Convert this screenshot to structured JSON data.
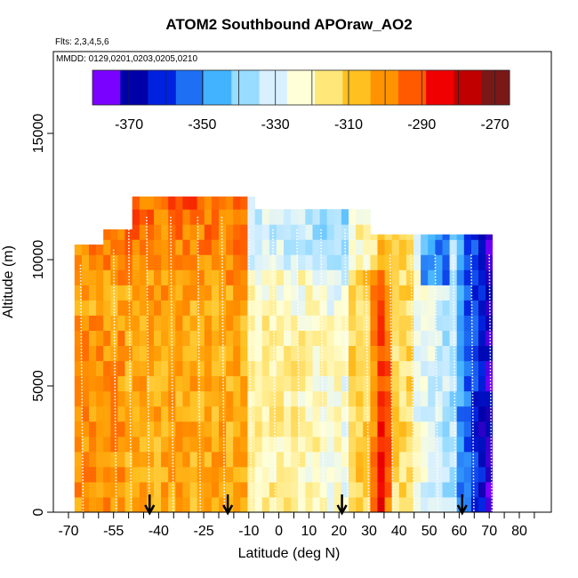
{
  "chart_data": {
    "type": "heatmap",
    "title": "ATOM2 Southbound APOraw_AO2",
    "flights_note": "Flts: 2,3,4,5,6",
    "dates_note": "MMDD: 0129,0201,0203,0205,0210",
    "xlabel": "Latitude (deg N)",
    "ylabel": "Altitude (m)",
    "xlim": [
      -70,
      85
    ],
    "ylim": [
      0,
      17500
    ],
    "x_ticks": [
      -70,
      -55,
      -40,
      -25,
      -10,
      0,
      10,
      20,
      30,
      40,
      50,
      60,
      70,
      80
    ],
    "y_ticks": [
      0,
      5000,
      10000,
      15000
    ],
    "colorbar": {
      "ticks": [
        -370,
        -350,
        -330,
        -310,
        -290,
        -270
      ],
      "range": [
        -380,
        -266
      ],
      "colors": [
        "#7a00ff",
        "#0000a8",
        "#0022e0",
        "#1f6ff5",
        "#42b4ff",
        "#98dcff",
        "#d8f0ff",
        "#ffffd8",
        "#ffe77a",
        "#ffc020",
        "#ff9400",
        "#ff5a00",
        "#f00000",
        "#c00000",
        "#7a1818"
      ]
    },
    "airport_arrows_latitude": [
      -43,
      -17,
      21,
      61
    ],
    "grid": false,
    "colorbar_position": "top, inside plot"
  }
}
